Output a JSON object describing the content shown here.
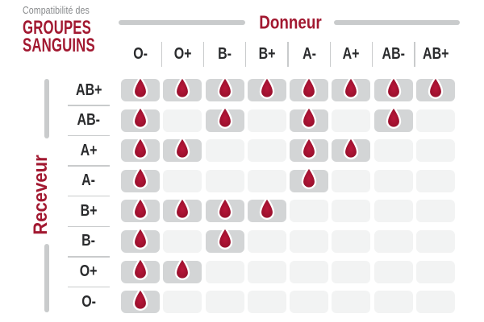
{
  "title": {
    "eyebrow": "Compatibilité des",
    "line1": "GROUPES",
    "line2": "SANGUINS"
  },
  "donor_axis_label": "Donneur",
  "receiver_axis_label": "Receveur",
  "chart_data": {
    "type": "heatmap",
    "title": "Compatibilité des groupes sanguins",
    "x_axis_label": "Donneur",
    "y_axis_label": "Receveur",
    "donors": [
      "O-",
      "O+",
      "B-",
      "B+",
      "A-",
      "A+",
      "AB-",
      "AB+"
    ],
    "receivers": [
      "AB+",
      "AB-",
      "A+",
      "A-",
      "B+",
      "B-",
      "O+",
      "O-"
    ],
    "marker": "blood-drop-icon",
    "legend": "1 = drop shown (donor compatible with receiver), 0 = empty cell",
    "matrix": [
      [
        1,
        1,
        1,
        1,
        1,
        1,
        1,
        1
      ],
      [
        1,
        0,
        1,
        0,
        1,
        0,
        1,
        0
      ],
      [
        1,
        1,
        0,
        0,
        1,
        1,
        0,
        0
      ],
      [
        1,
        0,
        0,
        0,
        1,
        0,
        0,
        0
      ],
      [
        1,
        1,
        1,
        1,
        0,
        0,
        0,
        0
      ],
      [
        1,
        0,
        1,
        0,
        0,
        0,
        0,
        0
      ],
      [
        1,
        1,
        0,
        0,
        0,
        0,
        0,
        0
      ],
      [
        1,
        0,
        0,
        0,
        0,
        0,
        0,
        0
      ]
    ]
  },
  "colors": {
    "brand_red": "#A21931",
    "drop_red_light": "#B8173A",
    "drop_red_dark": "#8E0D27",
    "cell_gray": "#D3D5D6",
    "cell_empty": "#F2F3F3",
    "line_gray": "#C9CBCC",
    "text_dark": "#2A2B2D",
    "muted_gray": "#87898B"
  }
}
